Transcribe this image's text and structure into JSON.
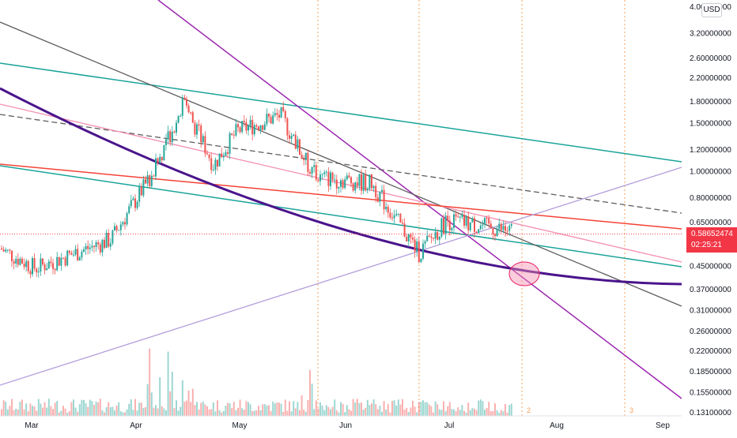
{
  "chart_data": {
    "type": "candlestick",
    "currency_label": "USD",
    "y_axis": {
      "scale": "log",
      "tick_labels": [
        "4.00000000",
        "3.20000000",
        "2.60000000",
        "2.20000000",
        "1.80000000",
        "1.50000000",
        "1.20000000",
        "1.00000000",
        "0.80000000",
        "0.65000000",
        "0.58652474",
        "0.45000000",
        "0.37000000",
        "0.31000000",
        "0.26000000",
        "0.22000000",
        "0.18500000",
        "0.15500000",
        "0.13100000"
      ],
      "range": [
        0.13,
        4.0
      ]
    },
    "x_axis": {
      "tick_labels": [
        "Mar",
        "Apr",
        "May",
        "Jun",
        "Jul",
        "Aug",
        "Sep"
      ]
    },
    "current_price": "0.58652474",
    "countdown": "02:25:21",
    "cycle_labels": [
      "2",
      "3"
    ],
    "price_series_approx": [
      {
        "date": "Mar",
        "close": 0.52
      },
      {
        "date": "Mar-mid",
        "close": 0.44
      },
      {
        "date": "Apr-start",
        "close": 0.56
      },
      {
        "date": "Apr-early",
        "close": 1.0
      },
      {
        "date": "Apr-mid",
        "close": 1.8
      },
      {
        "date": "Apr-late",
        "close": 1.05
      },
      {
        "date": "May",
        "close": 1.4
      },
      {
        "date": "May-mid",
        "close": 1.6
      },
      {
        "date": "May-late",
        "close": 1.1
      },
      {
        "date": "Jun-start",
        "close": 0.95
      },
      {
        "date": "Jun-mid",
        "close": 0.9
      },
      {
        "date": "Jun-late",
        "close": 0.5
      },
      {
        "date": "Jul",
        "close": 0.66
      },
      {
        "date": "Jul-mid",
        "close": 0.6
      }
    ],
    "grid": false,
    "colors": {
      "up": "#26a69a",
      "down": "#ef5350",
      "teal_channel": "#1aa39a",
      "purple_line": "#9c27b0",
      "dark_purple_curve": "#4a148c",
      "gray_line": "#5d5d5d",
      "pink_line": "#f48fb1",
      "red_line": "#f44336",
      "lavender_line": "#b39ddb",
      "price_label": "#f23645",
      "cycle_lines": "#f5a05a"
    }
  }
}
